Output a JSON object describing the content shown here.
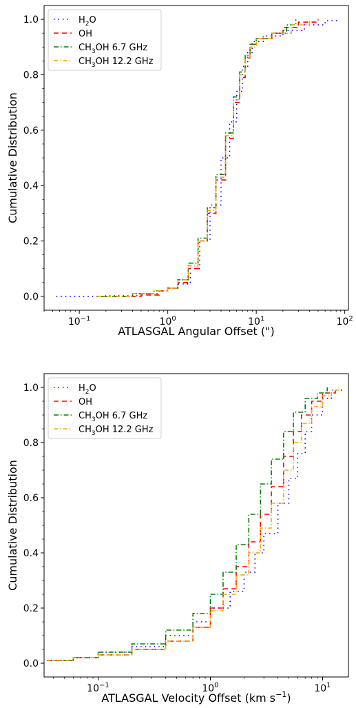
{
  "chart_data": [
    {
      "type": "line",
      "xscale": "log",
      "xlabel": "ATLASGAL Angular Offset (\")",
      "ylabel": "Cumulative Distribution",
      "xlim": [
        0.04,
        110
      ],
      "ylim": [
        -0.05,
        1.05
      ],
      "xticks": [
        0.1,
        1,
        10,
        100
      ],
      "xtick_labels": [
        {
          "base": "10",
          "exp": "−1"
        },
        {
          "base": "10",
          "exp": "0"
        },
        {
          "base": "10",
          "exp": "1"
        },
        {
          "base": "10",
          "exp": "2"
        }
      ],
      "yticks": [
        "0.0",
        "0.2",
        "0.4",
        "0.6",
        "0.8",
        "1.0"
      ],
      "legend_position": "upper-left",
      "series": [
        {
          "name": "H2O",
          "label_main": "H",
          "label_sub": "2",
          "label_rest": "O",
          "color": "#0000ff",
          "dash": "1.5,5",
          "x": [
            0.055,
            0.2,
            0.5,
            0.8,
            1.0,
            1.3,
            1.8,
            2.3,
            3.0,
            4.0,
            5.0,
            6.0,
            7.0,
            8.0,
            9.0,
            12.0,
            20.0,
            35.0,
            60.0,
            85.0
          ],
          "y": [
            0.0,
            0.002,
            0.01,
            0.02,
            0.03,
            0.045,
            0.1,
            0.2,
            0.33,
            0.5,
            0.63,
            0.74,
            0.83,
            0.88,
            0.92,
            0.94,
            0.96,
            0.98,
            0.995,
            1.0
          ]
        },
        {
          "name": "OH",
          "label_main": "OH",
          "label_sub": "",
          "label_rest": "",
          "color": "#ff0000",
          "dash": "7,5",
          "x": [
            0.25,
            0.5,
            0.8,
            1.0,
            1.3,
            1.7,
            2.2,
            2.8,
            3.5,
            4.5,
            5.5,
            6.5,
            7.5,
            8.5,
            10.0,
            15.0,
            20.0,
            30.0,
            50.0
          ],
          "y": [
            0.0,
            0.005,
            0.02,
            0.03,
            0.05,
            0.1,
            0.2,
            0.3,
            0.42,
            0.57,
            0.7,
            0.79,
            0.86,
            0.91,
            0.93,
            0.95,
            0.97,
            0.99,
            1.0
          ]
        },
        {
          "name": "CH3OH 6.7 GHz",
          "label_main": "CH",
          "label_sub": "3",
          "label_rest": "OH 6.7 GHz",
          "color": "#008000",
          "dash": "7,3,1.5,3",
          "x": [
            0.18,
            0.4,
            0.7,
            1.0,
            1.3,
            1.7,
            2.2,
            2.8,
            3.5,
            4.5,
            5.5,
            6.5,
            7.5,
            8.5,
            10.0,
            15.0,
            22.0,
            28.0
          ],
          "y": [
            0.0,
            0.01,
            0.02,
            0.03,
            0.06,
            0.12,
            0.21,
            0.32,
            0.44,
            0.59,
            0.72,
            0.81,
            0.87,
            0.91,
            0.93,
            0.95,
            0.98,
            1.0
          ]
        },
        {
          "name": "CH3OH 12.2 GHz",
          "label_main": "CH",
          "label_sub": "3",
          "label_rest": "OH 12.2 GHz",
          "color": "#ffa500",
          "dash": "6,3,1.5,3",
          "x": [
            0.16,
            0.4,
            0.7,
            1.0,
            1.3,
            1.7,
            2.2,
            2.8,
            3.5,
            4.5,
            5.5,
            6.5,
            7.5,
            8.5,
            10.0,
            15.0,
            25.0,
            40.0
          ],
          "y": [
            0.0,
            0.01,
            0.02,
            0.03,
            0.06,
            0.11,
            0.2,
            0.31,
            0.43,
            0.58,
            0.71,
            0.8,
            0.86,
            0.9,
            0.93,
            0.95,
            0.98,
            1.0
          ]
        }
      ]
    },
    {
      "type": "line",
      "xscale": "log",
      "xlabel": "ATLASGAL Velocity Offset (km s",
      "xlabel_sup": "−1",
      "xlabel_tail": ")",
      "ylabel": "Cumulative Distribution",
      "xlim": [
        0.033,
        17
      ],
      "ylim": [
        -0.05,
        1.05
      ],
      "xticks": [
        0.1,
        1,
        10
      ],
      "xtick_labels": [
        {
          "base": "10",
          "exp": "−1"
        },
        {
          "base": "10",
          "exp": "0"
        },
        {
          "base": "10",
          "exp": "1"
        }
      ],
      "yticks": [
        "0.0",
        "0.2",
        "0.4",
        "0.6",
        "0.8",
        "1.0"
      ],
      "legend_position": "upper-left",
      "series": [
        {
          "name": "H2O",
          "label_main": "H",
          "label_sub": "2",
          "label_rest": "O",
          "color": "#0000ff",
          "dash": "1.5,5",
          "x": [
            0.035,
            0.06,
            0.1,
            0.2,
            0.4,
            0.7,
            1.0,
            1.5,
            2.0,
            2.5,
            3.0,
            4.0,
            5.0,
            6.0,
            7.0,
            8.0,
            10.0,
            12.0,
            15.0
          ],
          "y": [
            0.01,
            0.02,
            0.04,
            0.06,
            0.1,
            0.15,
            0.2,
            0.26,
            0.33,
            0.4,
            0.47,
            0.58,
            0.67,
            0.76,
            0.84,
            0.9,
            0.96,
            0.99,
            1.0
          ]
        },
        {
          "name": "OH",
          "label_main": "OH",
          "label_sub": "",
          "label_rest": "",
          "color": "#ff0000",
          "dash": "7,5",
          "x": [
            0.035,
            0.06,
            0.1,
            0.2,
            0.4,
            0.7,
            1.0,
            1.3,
            1.7,
            2.2,
            2.8,
            3.5,
            4.5,
            5.5,
            6.5,
            8.0,
            10.0,
            13.0
          ],
          "y": [
            0.01,
            0.02,
            0.03,
            0.05,
            0.08,
            0.13,
            0.2,
            0.27,
            0.35,
            0.44,
            0.54,
            0.64,
            0.75,
            0.84,
            0.9,
            0.95,
            0.98,
            1.0
          ]
        },
        {
          "name": "CH3OH 6.7 GHz",
          "label_main": "CH",
          "label_sub": "3",
          "label_rest": "OH 6.7 GHz",
          "color": "#008000",
          "dash": "7,3,1.5,3",
          "x": [
            0.035,
            0.06,
            0.1,
            0.2,
            0.4,
            0.7,
            1.0,
            1.3,
            1.7,
            2.2,
            2.8,
            3.5,
            4.5,
            5.5,
            7.0,
            9.0,
            11.0
          ],
          "y": [
            0.01,
            0.02,
            0.04,
            0.07,
            0.12,
            0.18,
            0.25,
            0.33,
            0.43,
            0.54,
            0.65,
            0.74,
            0.84,
            0.91,
            0.96,
            0.98,
            1.0
          ]
        },
        {
          "name": "CH3OH 12.2 GHz",
          "label_main": "CH",
          "label_sub": "3",
          "label_rest": "OH 12.2 GHz",
          "color": "#ffa500",
          "dash": "6,3,1.5,3",
          "x": [
            0.035,
            0.06,
            0.1,
            0.2,
            0.4,
            0.7,
            1.0,
            1.3,
            1.7,
            2.2,
            2.8,
            3.5,
            4.5,
            5.5,
            6.5,
            8.0,
            10.0,
            12.0,
            14.0
          ],
          "y": [
            0.01,
            0.02,
            0.03,
            0.05,
            0.08,
            0.13,
            0.19,
            0.25,
            0.32,
            0.4,
            0.49,
            0.58,
            0.7,
            0.8,
            0.87,
            0.93,
            0.97,
            0.99,
            1.0
          ]
        }
      ]
    }
  ]
}
